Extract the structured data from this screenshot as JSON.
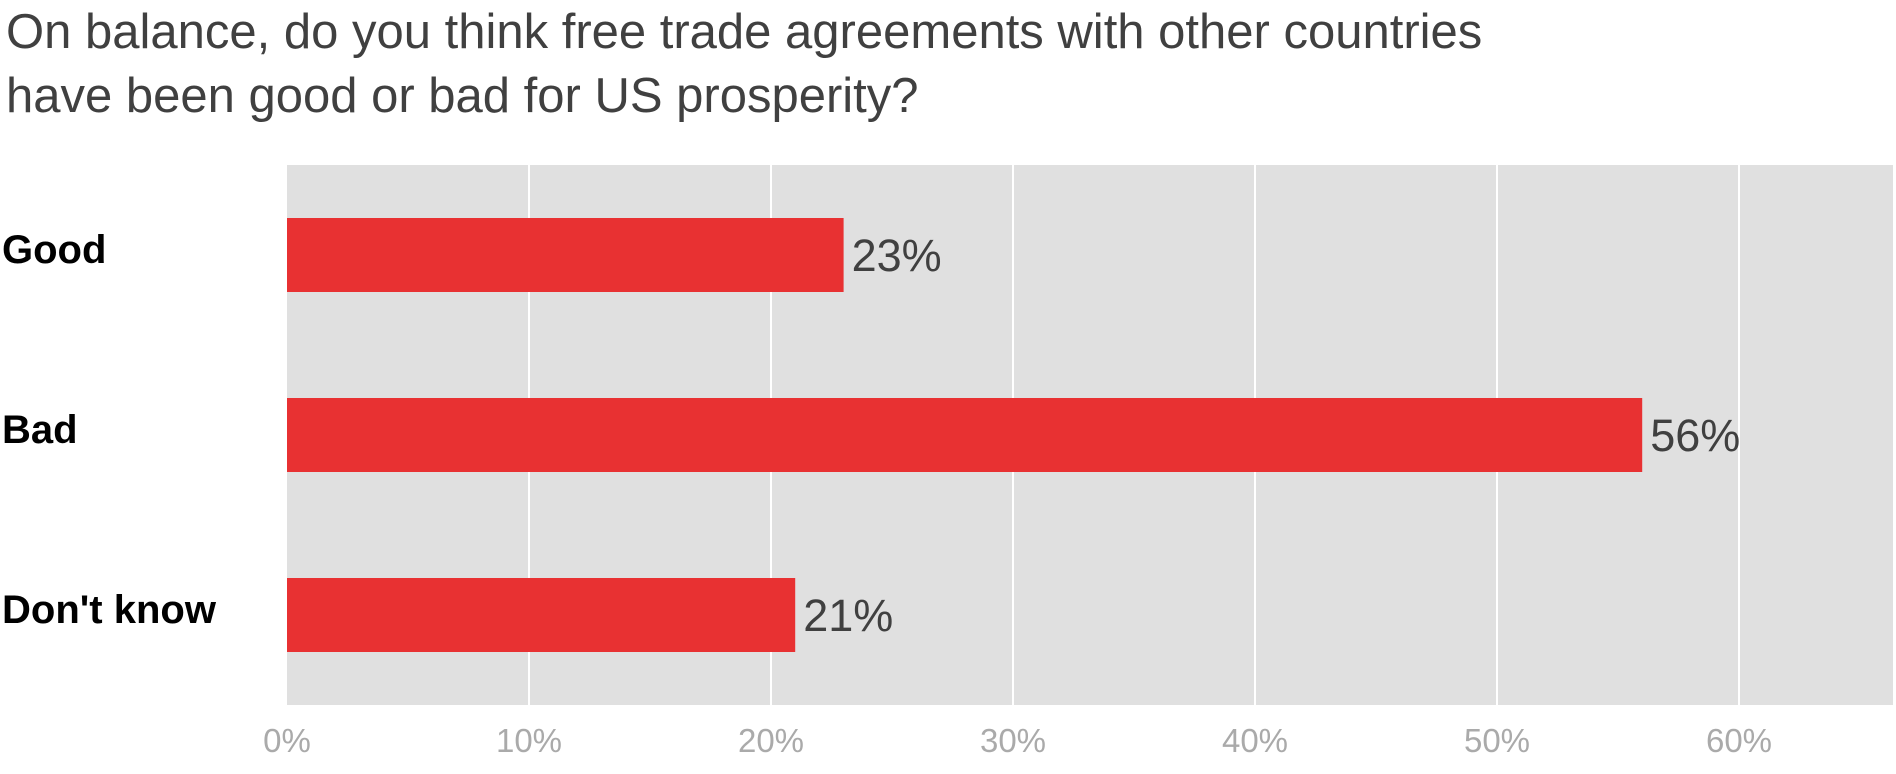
{
  "title_lines": [
    "On balance, do you think free trade agreements with other countries",
    "have been good or bad for US prosperity?"
  ],
  "colors": {
    "bar": "#e83132",
    "plot_background": "#e0e0e0",
    "grid": "#ffffff"
  },
  "chart_data": {
    "type": "bar",
    "orientation": "horizontal",
    "title": "On balance, do you think free trade agreements with other countries have been good or bad for US prosperity?",
    "categories": [
      "Good",
      "Bad",
      "Don't know"
    ],
    "values": [
      23,
      56,
      21
    ],
    "value_labels": [
      "23%",
      "56%",
      "21%"
    ],
    "xlabel": "",
    "ylabel": "",
    "xlim": [
      0,
      66
    ],
    "ticks": [
      0,
      10,
      20,
      30,
      40,
      50,
      60
    ],
    "tick_labels": [
      "0%",
      "10%",
      "20%",
      "30%",
      "40%",
      "50%",
      "60%"
    ],
    "grid": true,
    "legend": "none"
  }
}
